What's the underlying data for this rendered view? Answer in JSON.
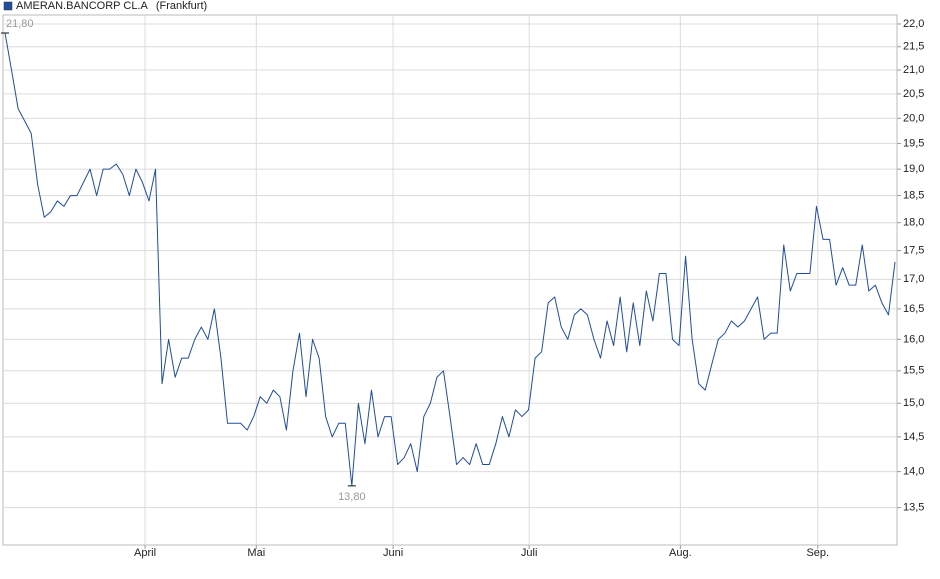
{
  "chart_data": {
    "type": "line",
    "title": "AMERAN.BANCORP CL.A",
    "subtitle": "(Frankfurt)",
    "log_scale": true,
    "grid": true,
    "x": [
      0,
      1,
      2,
      3,
      4,
      5,
      6,
      7,
      8,
      9,
      10,
      11,
      12,
      13,
      14,
      15,
      16,
      17,
      18,
      19,
      20,
      21,
      22,
      23,
      24,
      25,
      26,
      27,
      28,
      29,
      30,
      31,
      32,
      33,
      34,
      35,
      36,
      37,
      38,
      39,
      40,
      41,
      42,
      43,
      44,
      45,
      46,
      47,
      48,
      49,
      50,
      51,
      52,
      53,
      54,
      55,
      56,
      57,
      58,
      59,
      60,
      61,
      62,
      63,
      64,
      65,
      66,
      67,
      68,
      69,
      70,
      71,
      72,
      73,
      74,
      75,
      76,
      77,
      78,
      79,
      80,
      81,
      82,
      83,
      84,
      85,
      86,
      87,
      88,
      89,
      90,
      91,
      92,
      93,
      94,
      95,
      96,
      97,
      98,
      99,
      100,
      101,
      102,
      103,
      104,
      105,
      106,
      107,
      108,
      109,
      110,
      111,
      112,
      113,
      114,
      115,
      116,
      117,
      118,
      119,
      120,
      121,
      122,
      123,
      124,
      125,
      126,
      127,
      128,
      129,
      130,
      131,
      132,
      133,
      134,
      135,
      136
    ],
    "series": [
      {
        "name": "AMERAN.BANCORP CL.A",
        "color": "#1f4e9c",
        "values": [
          21.8,
          21.0,
          20.2,
          19.95,
          19.7,
          18.7,
          18.1,
          18.2,
          18.4,
          18.3,
          18.5,
          18.5,
          18.75,
          19.0,
          18.5,
          19.0,
          19.0,
          19.1,
          18.9,
          18.5,
          19.0,
          18.75,
          18.4,
          19.0,
          15.3,
          16.0,
          15.4,
          15.7,
          15.7,
          16.0,
          16.2,
          16.0,
          16.5,
          15.7,
          14.7,
          14.7,
          14.7,
          14.6,
          14.8,
          15.1,
          15.0,
          15.2,
          15.1,
          14.6,
          15.5,
          16.1,
          15.1,
          16.0,
          15.7,
          14.8,
          14.5,
          14.7,
          14.7,
          13.8,
          15.0,
          14.4,
          15.2,
          14.5,
          14.8,
          14.8,
          14.1,
          14.2,
          14.4,
          14.0,
          14.8,
          15.0,
          15.4,
          15.5,
          14.8,
          14.1,
          14.2,
          14.1,
          14.4,
          14.1,
          14.1,
          14.4,
          14.8,
          14.5,
          14.9,
          14.8,
          14.9,
          15.7,
          15.8,
          16.6,
          16.7,
          16.2,
          16.0,
          16.4,
          16.5,
          16.4,
          16.0,
          15.7,
          16.3,
          15.9,
          16.7,
          15.8,
          16.6,
          15.9,
          16.8,
          16.3,
          17.1,
          17.1,
          16.0,
          15.9,
          17.4,
          16.0,
          15.3,
          15.2,
          15.6,
          16.0,
          16.1,
          16.3,
          16.2,
          16.3,
          16.5,
          16.7,
          16.0,
          16.1,
          16.1,
          17.6,
          16.8,
          17.1,
          17.1,
          17.1,
          18.3,
          17.7,
          17.7,
          16.9,
          17.2,
          16.9,
          16.9,
          17.6,
          16.8,
          16.9,
          16.6,
          16.4,
          17.3
        ]
      }
    ],
    "annotations": [
      {
        "text": "21,80",
        "x": 0,
        "value": 21.8
      },
      {
        "text": "13,80",
        "x": 53,
        "value": 13.8
      }
    ],
    "xlim": [
      0,
      136
    ],
    "xticks": [
      {
        "value": 21.4,
        "label": "April"
      },
      {
        "value": 38.4,
        "label": "Mai"
      },
      {
        "value": 59.3,
        "label": "Juni"
      },
      {
        "value": 80.1,
        "label": "Juli"
      },
      {
        "value": 103.2,
        "label": "Aug."
      },
      {
        "value": 124.2,
        "label": "Sep."
      }
    ],
    "ylim": [
      13.0,
      22.2
    ],
    "yticks": [
      {
        "value": 13.5,
        "label": "13,5"
      },
      {
        "value": 14,
        "label": "14,0"
      },
      {
        "value": 14.5,
        "label": "14,5"
      },
      {
        "value": 15,
        "label": "15,0"
      },
      {
        "value": 15.5,
        "label": "15,5"
      },
      {
        "value": 16,
        "label": "16,0"
      },
      {
        "value": 16.5,
        "label": "16,5"
      },
      {
        "value": 17,
        "label": "17,0"
      },
      {
        "value": 17.5,
        "label": "17,5"
      },
      {
        "value": 18,
        "label": "18,0"
      },
      {
        "value": 18.5,
        "label": "18,5"
      },
      {
        "value": 19,
        "label": "19,0"
      },
      {
        "value": 19.5,
        "label": "19,5"
      },
      {
        "value": 20,
        "label": "20,0"
      },
      {
        "value": 20.5,
        "label": "20,5"
      },
      {
        "value": 21,
        "label": "21,0"
      },
      {
        "value": 21.5,
        "label": "21,5"
      },
      {
        "value": 22,
        "label": "22,0"
      }
    ]
  }
}
